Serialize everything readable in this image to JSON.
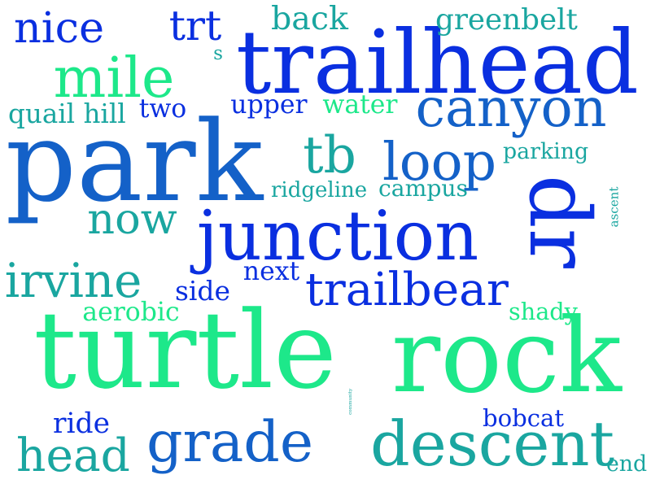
{
  "palette": {
    "blue": "#0a2fe0",
    "royal": "#1461c8",
    "teal": "#1aa6a0",
    "mint": "#1de88a"
  },
  "words": [
    {
      "key": "turtle",
      "text": "turtle"
    },
    {
      "key": "rock",
      "text": "rock"
    },
    {
      "key": "trailhead",
      "text": "trailhead"
    },
    {
      "key": "park",
      "text": "park"
    },
    {
      "key": "junction",
      "text": "junction"
    },
    {
      "key": "dr",
      "text": "dr"
    },
    {
      "key": "canyon",
      "text": "canyon"
    },
    {
      "key": "descent",
      "text": "descent"
    },
    {
      "key": "grade",
      "text": "grade"
    },
    {
      "key": "loop",
      "text": "loop"
    },
    {
      "key": "mile",
      "text": "mile"
    },
    {
      "key": "head",
      "text": "head"
    },
    {
      "key": "trailbear",
      "text": "trailbear"
    },
    {
      "key": "irvine",
      "text": "irvine"
    },
    {
      "key": "nice",
      "text": "nice"
    },
    {
      "key": "tb",
      "text": "tb"
    },
    {
      "key": "now",
      "text": "now"
    },
    {
      "key": "ascent",
      "text": "ascent"
    },
    {
      "key": "trt",
      "text": "trt"
    },
    {
      "key": "community",
      "text": "community"
    },
    {
      "key": "greenbelt",
      "text": "greenbelt"
    },
    {
      "key": "back",
      "text": "back"
    },
    {
      "key": "quail_hill",
      "text": "quail hill"
    },
    {
      "key": "ride",
      "text": "ride"
    },
    {
      "key": "bobcat",
      "text": "bobcat"
    },
    {
      "key": "parking",
      "text": "parking"
    },
    {
      "key": "upper",
      "text": "upper"
    },
    {
      "key": "water",
      "text": "water"
    },
    {
      "key": "two",
      "text": "two"
    },
    {
      "key": "ridgeline",
      "text": "ridgeline"
    },
    {
      "key": "campus",
      "text": "campus"
    },
    {
      "key": "next",
      "text": "next"
    },
    {
      "key": "side",
      "text": "side"
    },
    {
      "key": "aerobic",
      "text": "aerobic"
    },
    {
      "key": "shady",
      "text": "shady"
    },
    {
      "key": "end",
      "text": "end"
    },
    {
      "key": "s",
      "text": "s"
    }
  ]
}
